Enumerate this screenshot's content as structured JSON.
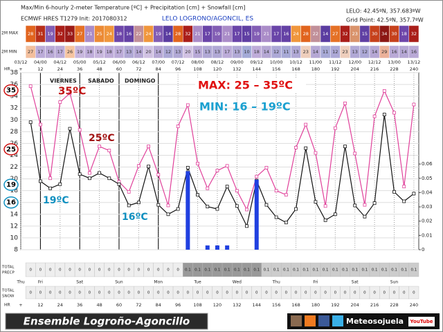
{
  "header": {
    "title": "Max/Min 6-hourly 2-meter Temperature [ºC] + Precipitation [cm] + Snowfall [cm]",
    "model": "ECMWF HRES T1279 Init: 2017080312",
    "station": "LELO LOGRONO/AGONCIL, ES",
    "coords": "LELO: 42.45ºN, 357.683ºW",
    "grid_point": "Grid Point: 42.5ºN, 357.7ºW"
  },
  "chart_data": {
    "type": "line",
    "x": [
      6,
      12,
      18,
      24,
      30,
      36,
      42,
      48,
      54,
      60,
      66,
      72,
      78,
      84,
      90,
      96,
      102,
      108,
      114,
      120,
      126,
      132,
      138,
      144,
      150,
      156,
      162,
      168,
      174,
      180,
      186,
      192,
      198,
      204,
      210,
      216,
      222,
      228,
      234,
      240
    ],
    "xlim": [
      0,
      243
    ],
    "xticks": [
      {
        "value": 0,
        "label": "03/12"
      },
      {
        "value": 12,
        "label": "04/00"
      },
      {
        "value": 24,
        "label": "04/12"
      },
      {
        "value": 36,
        "label": "05/00"
      },
      {
        "value": 48,
        "label": "05/12"
      },
      {
        "value": 60,
        "label": "06/00"
      },
      {
        "value": 72,
        "label": "06/12"
      },
      {
        "value": 84,
        "label": "07/00"
      },
      {
        "value": 96,
        "label": "07/12"
      },
      {
        "value": 108,
        "label": "08/00"
      },
      {
        "value": 120,
        "label": "08/12"
      },
      {
        "value": 132,
        "label": "09/00"
      },
      {
        "value": 144,
        "label": "09/12"
      },
      {
        "value": 156,
        "label": "10/00"
      },
      {
        "value": 168,
        "label": "10/12"
      },
      {
        "value": 180,
        "label": "11/00"
      },
      {
        "value": 192,
        "label": "11/12"
      },
      {
        "value": 204,
        "label": "12/00"
      },
      {
        "value": 216,
        "label": "12/12"
      },
      {
        "value": 228,
        "label": "13/00"
      },
      {
        "value": 240,
        "label": "13/12"
      }
    ],
    "ylim": [
      8,
      38
    ],
    "yticks": [
      8,
      10,
      12,
      14,
      16,
      18,
      20,
      22,
      24,
      26,
      28,
      30,
      32,
      34,
      36,
      38
    ],
    "y2lim": [
      0,
      0.124
    ],
    "y2ticks": [
      0,
      0.01,
      0.02,
      0.03,
      0.04,
      0.05,
      0.06
    ],
    "grid": true,
    "series": [
      {
        "name": "2M MAX",
        "color": "#e0409a",
        "values": [
          35.7,
          29.2,
          20.1,
          33.0,
          34.5,
          28.3,
          21.0,
          25.5,
          24.8,
          19.5,
          17.8,
          22.2,
          25.5,
          20.7,
          15.5,
          28.9,
          32.5,
          22.6,
          18.4,
          21.4,
          22.2,
          18.0,
          14.8,
          20.4,
          21.9,
          18.0,
          17.3,
          25.3,
          29.2,
          24.4,
          15.4,
          28.6,
          32.8,
          24.3,
          15.6,
          30.6,
          34.9,
          31.2,
          18.7,
          32.6
        ]
      },
      {
        "name": "2M MIN",
        "color": "#111111",
        "values": [
          29.6,
          19.6,
          18.4,
          19.1,
          28.5,
          20.8,
          20.1,
          21.0,
          20.1,
          19.1,
          15.5,
          16.0,
          22.1,
          15.6,
          14.0,
          14.9,
          21.9,
          17.3,
          15.3,
          14.9,
          18.7,
          15.4,
          12.0,
          19.7,
          15.6,
          13.5,
          12.6,
          14.9,
          25.2,
          16.1,
          13.0,
          14.0,
          25.5,
          15.5,
          13.6,
          15.9,
          30.9,
          17.8,
          16.2,
          17.5
        ]
      },
      {
        "type": "bar",
        "axis": "y2",
        "color": "#2040e0",
        "values": [
          0,
          0,
          0,
          0,
          0,
          0,
          0,
          0,
          0,
          0,
          0,
          0,
          0,
          0,
          0,
          0,
          0.055,
          0,
          0.003,
          0.003,
          0.003,
          0,
          0,
          0.049,
          0,
          0,
          0,
          0,
          0,
          0,
          0,
          0,
          0,
          0,
          0,
          0,
          0,
          0,
          0,
          0
        ]
      }
    ],
    "circled_ticks": [
      35,
      25,
      19,
      16
    ],
    "annotations": {
      "days": [
        "VIERNES",
        "SABADO",
        "DOMINGO"
      ],
      "max_range": "MAX: 25 – 35ºC",
      "min_range": "MIN: 16 – 19ºC",
      "t35": "35ºC",
      "t25": "25ºC",
      "t19": "19ºC",
      "t16": "16ºC"
    }
  },
  "rows": {
    "max": [
      28,
      31,
      19,
      32,
      33,
      27,
      21,
      25,
      24,
      18,
      16,
      22,
      24,
      19,
      14,
      28,
      32,
      21,
      17,
      19,
      21,
      17,
      15,
      19,
      21,
      17,
      16,
      24,
      28,
      22,
      14,
      27,
      32,
      23,
      15,
      30,
      34,
      30,
      18,
      32
    ],
    "min": [
      27,
      17,
      16,
      17,
      26,
      19,
      18,
      19,
      18,
      17,
      13,
      14,
      20,
      14,
      12,
      13,
      20,
      15,
      13,
      13,
      17,
      13,
      10,
      18,
      14,
      12,
      11,
      13,
      23,
      14,
      11,
      12,
      23,
      13,
      12,
      14,
      29,
      16,
      14,
      16
    ],
    "hr_label": "HR",
    "hr_ticks": [
      {
        "value": 0,
        "label": "+"
      },
      12,
      24,
      36,
      48,
      60,
      72,
      84,
      96,
      108,
      120,
      132,
      144,
      156,
      168,
      180,
      192,
      204,
      216,
      228,
      240
    ],
    "weekdays": [
      "Thu",
      "Fri",
      null,
      "Sat",
      null,
      "Sun",
      null,
      "Mon",
      null,
      "Tue",
      null,
      "Wed",
      null,
      "Thu",
      null,
      "Fri",
      null,
      "Sat",
      null,
      "Sun",
      null
    ],
    "total_precp": {
      "label": [
        "TOTAL",
        "PRECP"
      ],
      "values": [
        0,
        0,
        0,
        0,
        0,
        0,
        0,
        0,
        0,
        0,
        0,
        0,
        0,
        0,
        0,
        0,
        0.1,
        0.1,
        0.1,
        0.1,
        0.1,
        0.1,
        0.1,
        0.1,
        0.1,
        0.1,
        0.1,
        0.1,
        0.1,
        0.1,
        0.1,
        0.1,
        0.1,
        0.1,
        0.1,
        0.1,
        0.1,
        0.1,
        0.1,
        0.1
      ]
    },
    "total_snow": {
      "label": [
        "TOTAL",
        "SNOW"
      ],
      "values": [
        0,
        0,
        0,
        0,
        0,
        0,
        0,
        0,
        0,
        0,
        0,
        0,
        0,
        0,
        0,
        0,
        0,
        0,
        0,
        0,
        0,
        0,
        0,
        0,
        0,
        0,
        0,
        0,
        0,
        0,
        0,
        0,
        0,
        0,
        0,
        0,
        0,
        0,
        0,
        0
      ]
    }
  },
  "footer": {
    "title": "Ensemble Logroño-Agoncillo",
    "brand": "Meteosojuela",
    "youtube": "YouTube"
  }
}
